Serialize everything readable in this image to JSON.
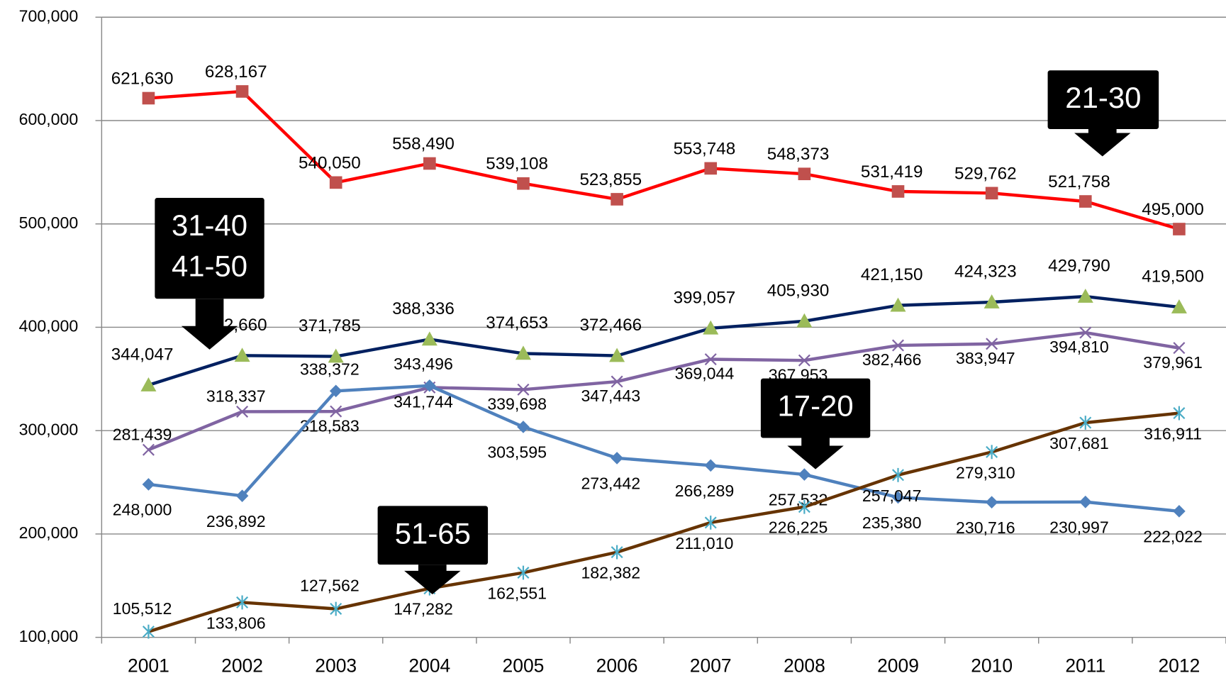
{
  "chart_data": {
    "type": "line",
    "categories": [
      "2001",
      "2002",
      "2003",
      "2004",
      "2005",
      "2006",
      "2007",
      "2008",
      "2009",
      "2010",
      "2011",
      "2012"
    ],
    "ylim": [
      100000,
      700000
    ],
    "yticks": [
      {
        "value": 100000,
        "label": "100,000"
      },
      {
        "value": 200000,
        "label": "200,000"
      },
      {
        "value": 300000,
        "label": "300,000"
      },
      {
        "value": 400000,
        "label": "400,000"
      },
      {
        "value": 500000,
        "label": "500,000"
      },
      {
        "value": 600000,
        "label": "600,000"
      },
      {
        "value": 700000,
        "label": "700,000"
      }
    ],
    "grid": true,
    "series": [
      {
        "color": "#ff0000",
        "marker": "square",
        "marker_color": "#c0504d",
        "values": [
          621630,
          628167,
          540050,
          558490,
          539108,
          523855,
          553748,
          548373,
          531419,
          529762,
          521758,
          495000
        ],
        "value_labels": [
          "621,630",
          "628,167",
          "540,050",
          "558,490",
          "539,108",
          "523,855",
          "553,748",
          "548,373",
          "531,419",
          "529,762",
          "521,758",
          "495,000"
        ]
      },
      {
        "color": "#002060",
        "marker": "triangle",
        "marker_color": "#9bbb59",
        "values": [
          344047,
          372660,
          371785,
          388336,
          374653,
          372466,
          399057,
          405930,
          421150,
          424323,
          429790,
          419500
        ],
        "value_labels": [
          "344,047",
          "372,660",
          "371,785",
          "388,336",
          "374,653",
          "372,466",
          "399,057",
          "405,930",
          "421,150",
          "424,323",
          "429,790",
          "419,500"
        ]
      },
      {
        "color": "#8064a2",
        "marker": "x",
        "marker_color": "#8064a2",
        "values": [
          281439,
          318337,
          318583,
          341744,
          339698,
          347443,
          369044,
          367953,
          382466,
          383947,
          394810,
          379961
        ],
        "value_labels": [
          "281,439",
          "318,337",
          "318,583",
          "341,744",
          "339,698",
          "347,443",
          "369,044",
          "367,953",
          "382,466",
          "383,947",
          "394,810",
          "379,961"
        ]
      },
      {
        "color": "#4f81bd",
        "marker": "diamond",
        "marker_color": "#4f81bd",
        "values": [
          248000,
          236892,
          338372,
          343496,
          303595,
          273442,
          266289,
          257532,
          235380,
          230716,
          230997,
          222022
        ],
        "value_labels": [
          "248,000",
          "236,892",
          "338,372",
          "343,496",
          "303,595",
          "273,442",
          "266,289",
          "257,532",
          "235,380",
          "230,716",
          "230,997",
          "222,022"
        ]
      },
      {
        "color": "#663300",
        "marker": "star",
        "marker_color": "#4bacc6",
        "values": [
          105512,
          133806,
          127562,
          147282,
          162551,
          182382,
          211010,
          226225,
          257047,
          279310,
          307681,
          316911
        ],
        "value_labels": [
          "105,512",
          "133,806",
          "127,562",
          "147,282",
          "162,551",
          "182,382",
          "211,010",
          "226,225",
          "257,047",
          "279,310",
          "307,681",
          "316,911"
        ]
      }
    ],
    "annotations": [
      {
        "lines": [
          "21-30"
        ]
      },
      {
        "lines": [
          "31-40",
          "41-50"
        ]
      },
      {
        "lines": [
          "17-20"
        ]
      },
      {
        "lines": [
          "51-65"
        ]
      }
    ]
  }
}
